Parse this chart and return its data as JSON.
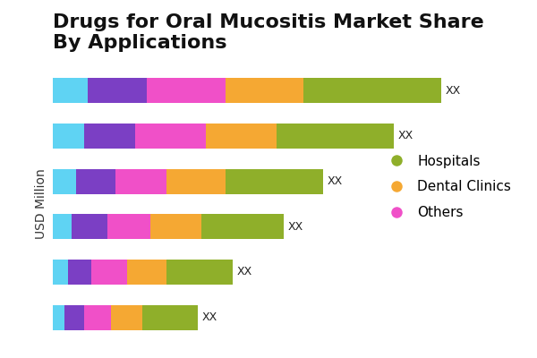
{
  "title": "Drugs for Oral Mucositis Market Share\nBy Applications",
  "ylabel": "USD Million",
  "label_text": "XX",
  "colors": [
    "#5FD3F3",
    "#7B3FC4",
    "#F050C8",
    "#F5A833",
    "#8FAF2A"
  ],
  "legend_items": [
    {
      "label": "Hospitals",
      "color": "#8FAF2A"
    },
    {
      "label": "Dental Clinics",
      "color": "#F5A833"
    },
    {
      "label": "Others",
      "color": "#F050C8"
    }
  ],
  "bars": [
    [
      0.9,
      1.5,
      2.0,
      2.0,
      3.5
    ],
    [
      0.8,
      1.3,
      1.8,
      1.8,
      3.0
    ],
    [
      0.6,
      1.0,
      1.3,
      1.5,
      2.5
    ],
    [
      0.5,
      0.9,
      1.1,
      1.3,
      2.1
    ],
    [
      0.4,
      0.6,
      0.9,
      1.0,
      1.7
    ],
    [
      0.3,
      0.5,
      0.7,
      0.8,
      1.4
    ]
  ],
  "background_color": "#FFFFFF",
  "title_fontsize": 16,
  "axis_label_fontsize": 10,
  "legend_fontsize": 11,
  "bar_height": 0.55
}
